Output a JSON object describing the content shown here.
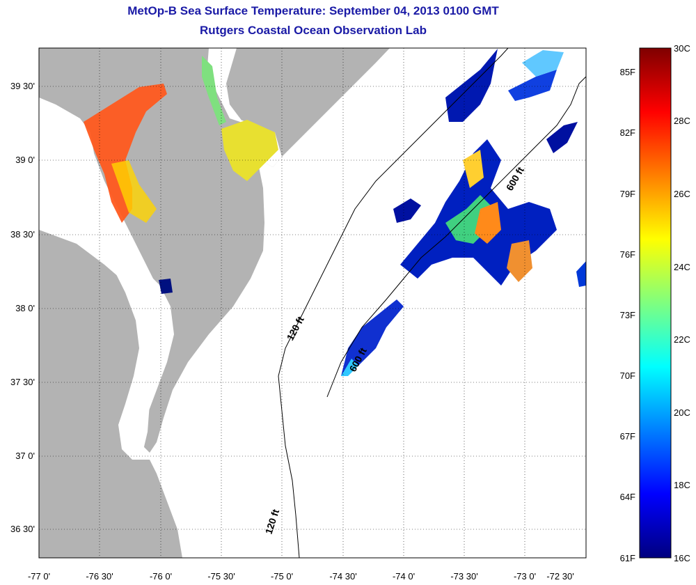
{
  "header": {
    "title": "MetOp-B Sea Surface Temperature:  September 04, 2013 0100 GMT",
    "subtitle": "Rutgers Coastal Ocean Observation Lab"
  },
  "map": {
    "lat_labels": [
      "39 30'",
      "39 0'",
      "38 30'",
      "38 0'",
      "37 30'",
      "37 0'",
      "36 30'"
    ],
    "lon_labels": [
      "-77 0'",
      "-76 30'",
      "-76 0'",
      "-75 30'",
      "-75 0'",
      "-74 30'",
      "-74 0'",
      "-73 30'",
      "-73 0'",
      "-72 30'"
    ],
    "contour_labels": [
      "600 ft",
      "120 ft",
      "600 ft",
      "120 ft"
    ],
    "colors": {
      "land": "#b3b3b3",
      "water": "#ffffff",
      "title": "#1a1aa6"
    }
  },
  "colorbar": {
    "celsius_labels": [
      "30C",
      "28C",
      "26C",
      "24C",
      "22C",
      "20C",
      "18C",
      "16C"
    ],
    "fahrenheit_labels": [
      "85F",
      "82F",
      "79F",
      "76F",
      "73F",
      "70F",
      "67F",
      "64F",
      "61F"
    ],
    "colors": [
      "#00007f",
      "#0000ff",
      "#007fff",
      "#00ffff",
      "#7fff7f",
      "#ffff00",
      "#ff7f00",
      "#ff0000",
      "#7f0000"
    ]
  }
}
